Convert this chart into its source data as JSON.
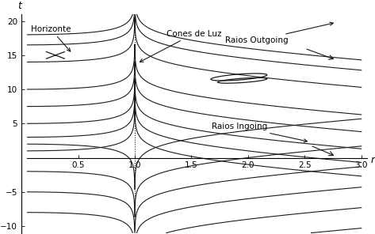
{
  "bg_color": "#ffffff",
  "line_color": "#1a1a1a",
  "horizon_color": "#444444",
  "rs": 1.0,
  "xlim": [
    0.05,
    3.05
  ],
  "ylim": [
    -11,
    21
  ],
  "xticks": [
    0.5,
    1.0,
    1.5,
    2.0,
    2.5,
    3.0
  ],
  "yticks": [
    -10,
    -5,
    5,
    10,
    15,
    20
  ],
  "ingoing_C_vals": [
    1,
    3,
    5,
    7.5,
    10,
    14,
    16.5,
    18
  ],
  "outgoing_C_vals": [
    -14,
    -11,
    -8,
    -5,
    -2,
    2
  ],
  "lw": 0.8,
  "tick_fontsize": 7.5
}
